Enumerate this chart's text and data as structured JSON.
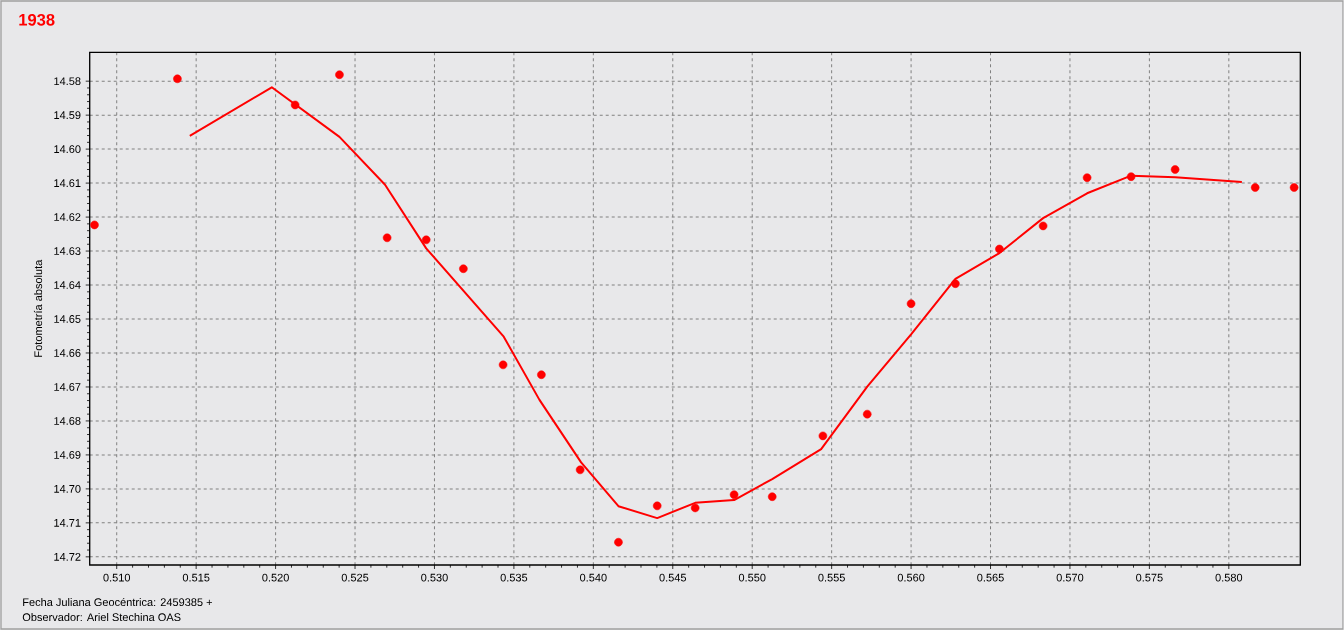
{
  "chart_data": {
    "type": "scatter",
    "title": "1938",
    "xlabel": "Fecha Juliana Geocéntrica: 2459385 +",
    "ylabel": "Fotometría absoluta",
    "annotations": [
      "Observador: Ariel Stechina OAS"
    ],
    "xlim": [
      0.5083,
      0.5845
    ],
    "ylim": [
      14.7224,
      14.5715
    ],
    "xticks": [
      {
        "value": 0.51,
        "label": "0.510"
      },
      {
        "value": 0.515,
        "label": "0.515"
      },
      {
        "value": 0.52,
        "label": "0.520"
      },
      {
        "value": 0.525,
        "label": "0.525"
      },
      {
        "value": 0.53,
        "label": "0.530"
      },
      {
        "value": 0.535,
        "label": "0.535"
      },
      {
        "value": 0.54,
        "label": "0.540"
      },
      {
        "value": 0.545,
        "label": "0.545"
      },
      {
        "value": 0.55,
        "label": "0.550"
      },
      {
        "value": 0.555,
        "label": "0.555"
      },
      {
        "value": 0.56,
        "label": "0.560"
      },
      {
        "value": 0.565,
        "label": "0.565"
      },
      {
        "value": 0.57,
        "label": "0.570"
      },
      {
        "value": 0.575,
        "label": "0.575"
      },
      {
        "value": 0.58,
        "label": "0.580"
      }
    ],
    "yticks": [
      {
        "value": 14.58,
        "label": "14.58"
      },
      {
        "value": 14.59,
        "label": "14.59"
      },
      {
        "value": 14.6,
        "label": "14.60"
      },
      {
        "value": 14.61,
        "label": "14.61"
      },
      {
        "value": 14.62,
        "label": "14.62"
      },
      {
        "value": 14.63,
        "label": "14.63"
      },
      {
        "value": 14.64,
        "label": "14.64"
      },
      {
        "value": 14.65,
        "label": "14.65"
      },
      {
        "value": 14.66,
        "label": "14.66"
      },
      {
        "value": 14.67,
        "label": "14.67"
      },
      {
        "value": 14.68,
        "label": "14.68"
      },
      {
        "value": 14.69,
        "label": "14.69"
      },
      {
        "value": 14.7,
        "label": "14.70"
      },
      {
        "value": 14.71,
        "label": "14.71"
      },
      {
        "value": 14.72,
        "label": "14.72"
      }
    ],
    "grid": true,
    "series": [
      {
        "type": "line",
        "marker": "none",
        "color": "#ff0000",
        "x": [
          0.5146,
          0.51976,
          0.52402,
          0.52689,
          0.52948,
          0.53436,
          0.53661,
          0.53923,
          0.54158,
          0.54402,
          0.54641,
          0.54886,
          0.55126,
          0.55434,
          0.55724,
          0.56,
          0.56279,
          0.56556,
          0.56831,
          0.57108,
          0.57385,
          0.57662,
          0.58082
        ],
        "values": [
          14.5961,
          14.5818,
          14.5964,
          14.6105,
          14.6292,
          14.6552,
          14.6738,
          14.6922,
          14.7051,
          14.7086,
          14.7041,
          14.7033,
          14.6971,
          14.6883,
          14.6699,
          14.6545,
          14.6382,
          14.6306,
          14.6203,
          14.613,
          14.6078,
          14.6083,
          14.6097
        ]
      },
      {
        "marker": "circle",
        "color": "#ff0000",
        "x": [
          0.5086,
          0.51382,
          0.52123,
          0.52402,
          0.52702,
          0.52948,
          0.53182,
          0.53432,
          0.53673,
          0.53917,
          0.54158,
          0.54402,
          0.54641,
          0.54886,
          0.55126,
          0.55445,
          0.55724,
          0.56,
          0.56279,
          0.56556,
          0.56831,
          0.57108,
          0.57385,
          0.57662,
          0.58166,
          0.58411
        ],
        "values": [
          14.6223,
          14.5793,
          14.587,
          14.5781,
          14.6261,
          14.6267,
          14.6352,
          14.6635,
          14.6664,
          14.6944,
          14.7157,
          14.705,
          14.7056,
          14.7017,
          14.7023,
          14.6844,
          14.678,
          14.6455,
          14.6396,
          14.6294,
          14.6226,
          14.6084,
          14.6081,
          14.606,
          14.6113,
          14.6113
        ]
      }
    ]
  }
}
